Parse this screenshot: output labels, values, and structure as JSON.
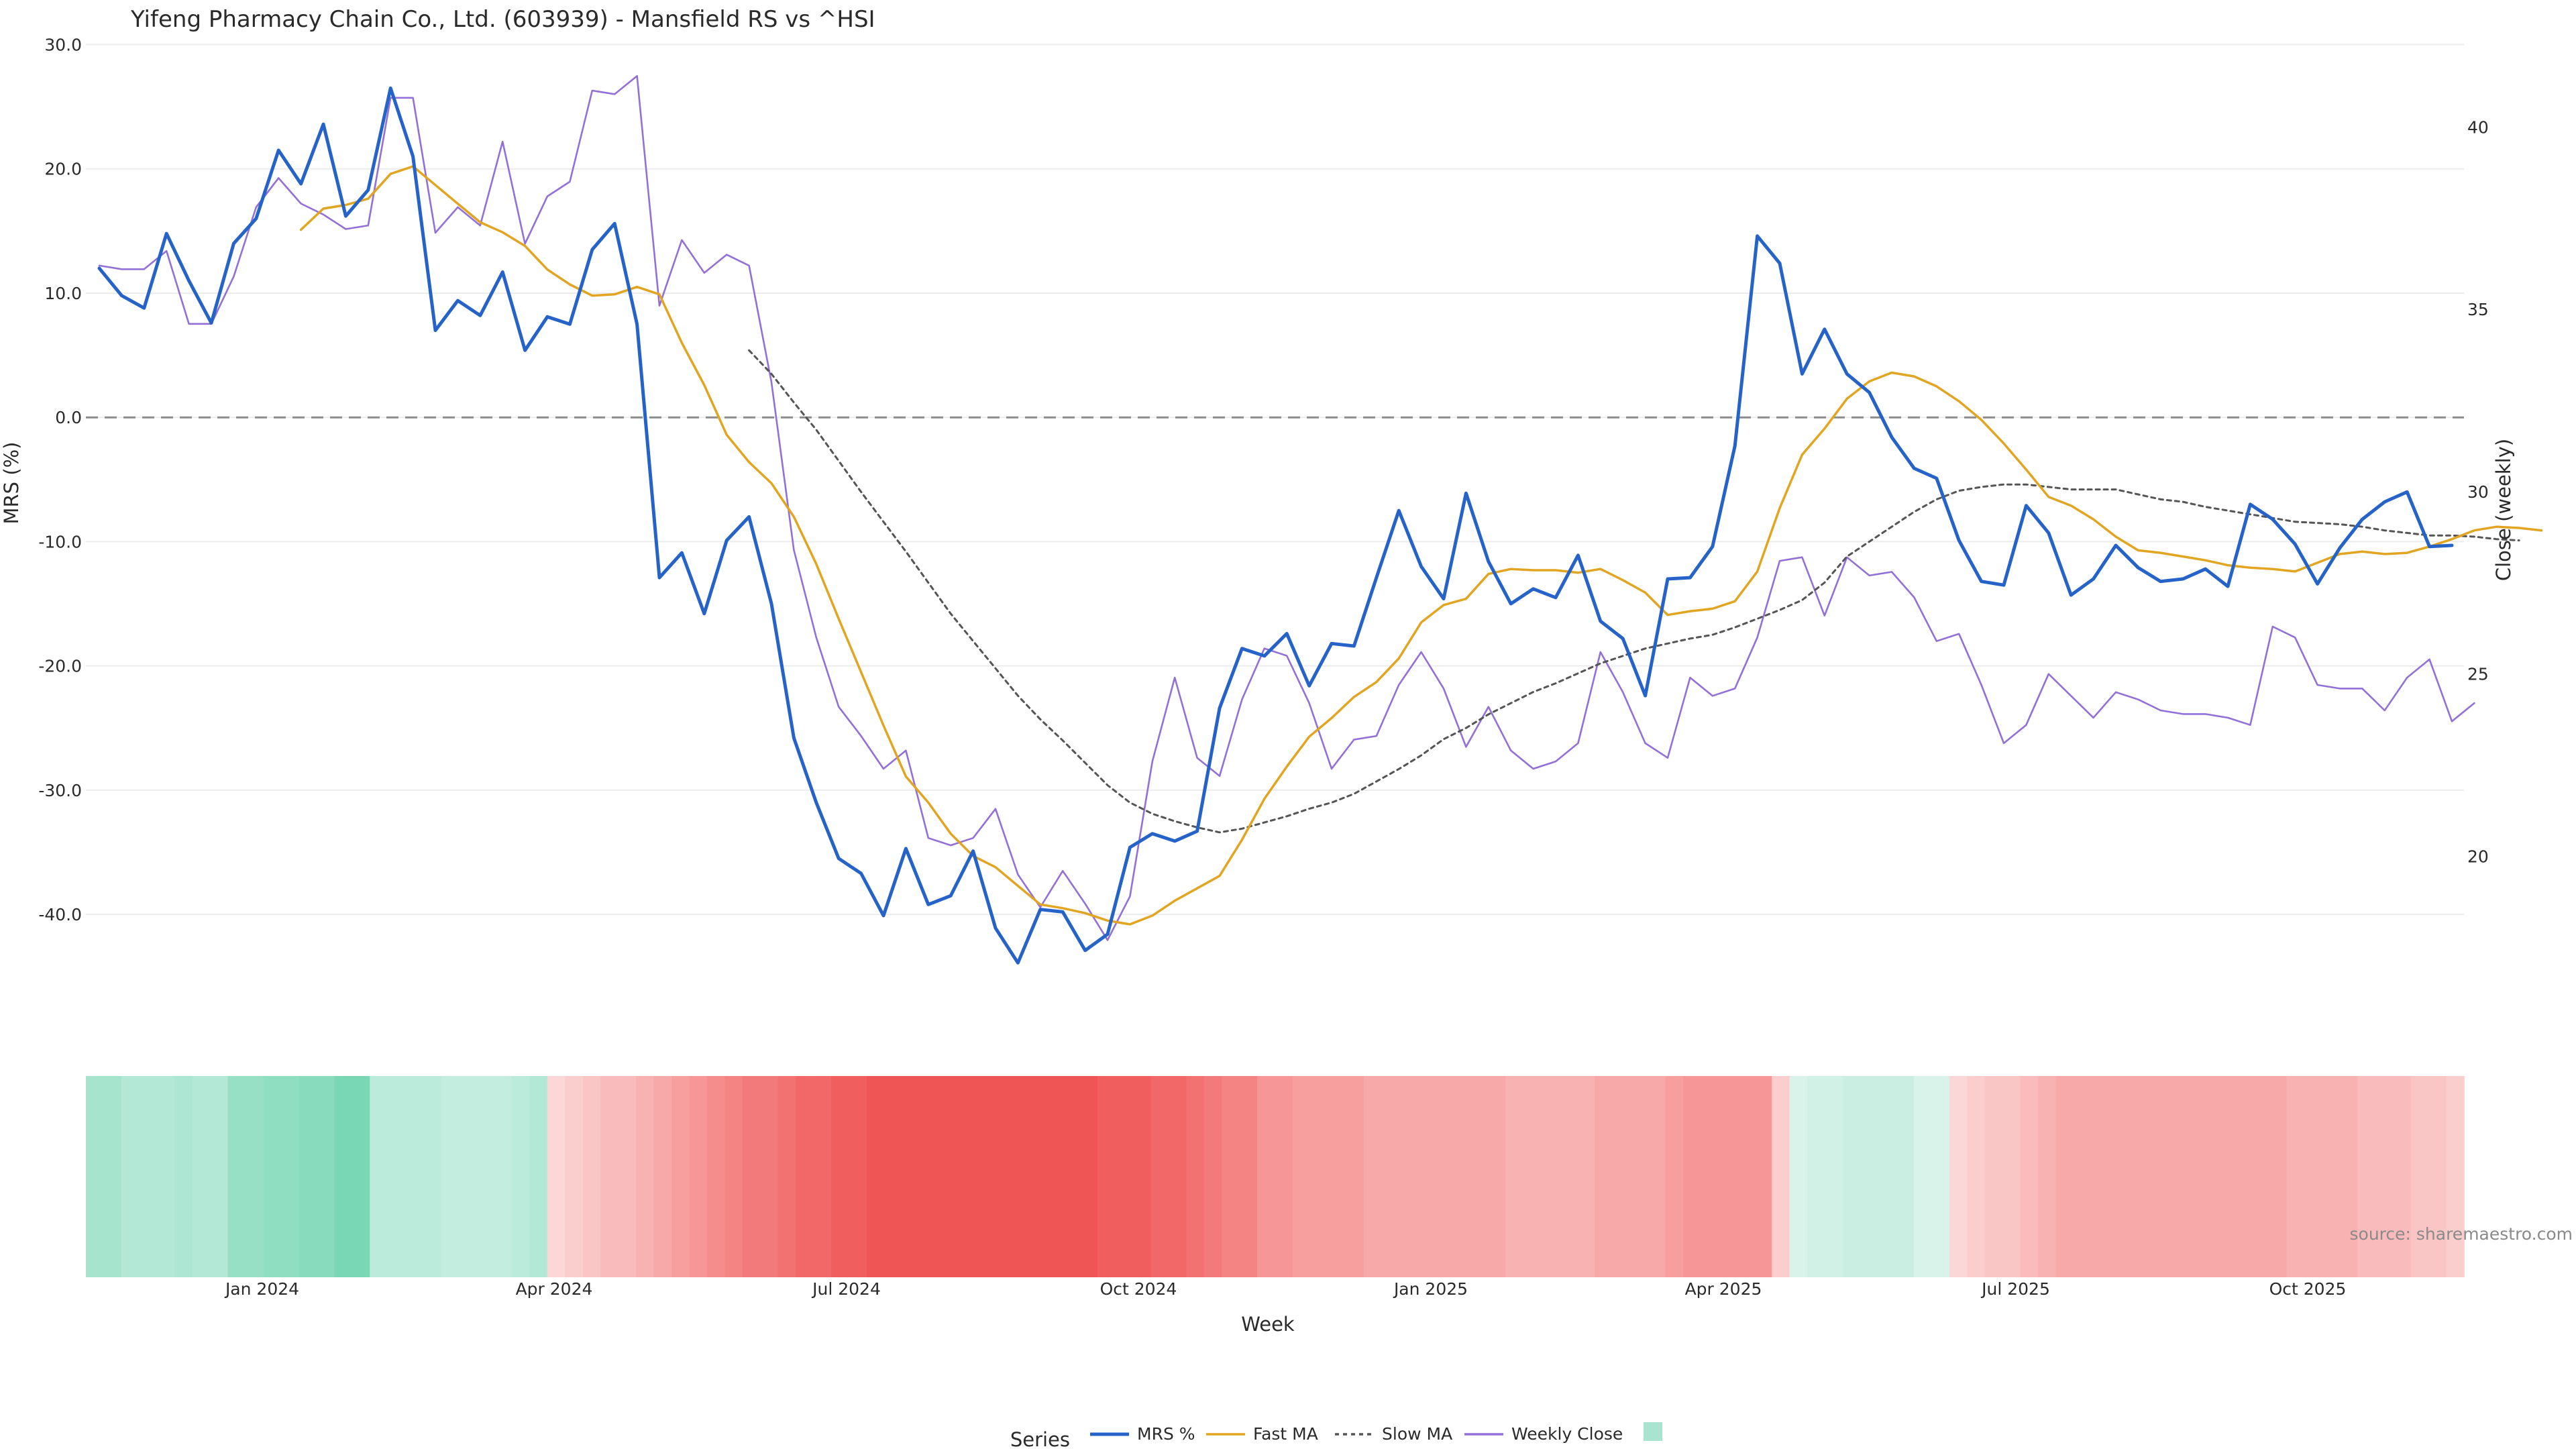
{
  "chart_data": {
    "type": "line",
    "title": "Yifeng Pharmacy Chain Co., Ltd. (603939) - Mansfield RS vs ^HSI",
    "xlabel": "Week",
    "ylabel": "MRS (%)",
    "y2label": "Close (weekly)",
    "x_ticks": [
      "Jan 2024",
      "Apr 2024",
      "Jul 2024",
      "Oct 2024",
      "Jan 2025",
      "Apr 2025",
      "Jul 2025",
      "Oct 2025"
    ],
    "y_ticks": [
      "30.0",
      "20.0",
      "10.0",
      "0.0",
      "-10.0",
      "-20.0",
      "-30.0",
      "-40.0"
    ],
    "y2_ticks": [
      "40",
      "35",
      "30",
      "25",
      "20"
    ],
    "ylim": [
      -47.5,
      31.0
    ],
    "y2lim": [
      15.85,
      42.6
    ],
    "reference_line": 0,
    "legend_title": "Series",
    "legend_position": "bottom-center",
    "source_text": "source: sharemaestro.com",
    "series": [
      {
        "name": "MRS %",
        "color": "#2563c9",
        "axis": "left",
        "values": [
          12,
          9.8,
          8.8,
          14.8,
          11,
          7.6,
          14,
          16,
          21.5,
          18.8,
          23.6,
          16.2,
          18.3,
          26.5,
          21,
          7,
          9.4,
          8.2,
          11.7,
          5.4,
          8.1,
          7.5,
          13.5,
          15.6,
          7.5,
          -12.9,
          -10.9,
          -15.8,
          -9.9,
          -8,
          -15,
          -25.8,
          -31,
          -35.5,
          -36.7,
          -40.1,
          -34.7,
          -39.2,
          -38.5,
          -34.9,
          -41.1,
          -43.9,
          -39.6,
          -39.8,
          -42.9,
          -41.6,
          -34.6,
          -33.5,
          -34.1,
          -33.3,
          -23.4,
          -18.6,
          -19.2,
          -17.4,
          -21.6,
          -18.2,
          -18.4,
          -12.9,
          -7.5,
          -12,
          -14.6,
          -6.1,
          -11.6,
          -15,
          -13.8,
          -14.5,
          -11.1,
          -16.4,
          -17.8,
          -22.4,
          -13,
          -12.9,
          -10.4,
          -2.3,
          14.6,
          12.4,
          3.5,
          7.1,
          3.5,
          2,
          -1.6,
          -4.1,
          -4.9,
          -9.9,
          -13.2,
          -13.5,
          -7.1,
          -9.3,
          -14.3,
          -13,
          -10.3,
          -12.1,
          -13.2,
          -13,
          -12.2,
          -13.6,
          -7,
          -8.2,
          -10.2,
          -13.4,
          -10.5,
          -8.2,
          -6.8,
          -6,
          -10.4,
          -10.3
        ]
      },
      {
        "name": "Fast MA",
        "color": "#e2a521",
        "axis": "left",
        "values": [
          null,
          null,
          null,
          null,
          null,
          null,
          null,
          null,
          null,
          15.1,
          16.8,
          17.1,
          17.6,
          19.6,
          20.2,
          18.7,
          17.2,
          15.7,
          14.9,
          13.8,
          11.9,
          10.7,
          9.8,
          9.9,
          10.5,
          9.9,
          6,
          2.6,
          -1.4,
          -3.6,
          -5.3,
          -8,
          -11.8,
          -16.2,
          -20.5,
          -24.8,
          -28.9,
          -31,
          -33.5,
          -35.3,
          -36.2,
          -37.7,
          -39.2,
          -39.5,
          -39.9,
          -40.5,
          -40.8,
          -40.1,
          -38.9,
          -37.9,
          -36.9,
          -34,
          -30.7,
          -28.1,
          -25.7,
          -24.2,
          -22.5,
          -21.3,
          -19.4,
          -16.5,
          -15.1,
          -14.6,
          -12.6,
          -12.2,
          -12.3,
          -12.3,
          -12.5,
          -12.2,
          -13.1,
          -14.1,
          -15.9,
          -15.6,
          -15.4,
          -14.8,
          -12.4,
          -7.3,
          -3,
          -0.9,
          1.5,
          2.9,
          3.6,
          3.3,
          2.5,
          1.3,
          -0.2,
          -2.1,
          -4.2,
          -6.4,
          -7.1,
          -8.2,
          -9.6,
          -10.7,
          -10.9,
          -11.2,
          -11.5,
          -11.9,
          -12.1,
          -12.2,
          -12.4,
          -11.7,
          -11,
          -10.8,
          -11,
          -10.9,
          -10.4,
          -9.8,
          -9.1,
          -8.8,
          -8.9,
          -9.1
        ]
      },
      {
        "name": "Slow MA",
        "color": "#555555",
        "axis": "left",
        "dash": true,
        "values": [
          null,
          null,
          null,
          null,
          null,
          null,
          null,
          null,
          null,
          null,
          null,
          null,
          null,
          null,
          null,
          null,
          null,
          null,
          null,
          null,
          null,
          null,
          null,
          null,
          null,
          null,
          null,
          null,
          null,
          5.4,
          3.5,
          1.2,
          -1,
          -3.5,
          -6,
          -8.4,
          -10.8,
          -13.3,
          -15.8,
          -18,
          -20.2,
          -22.4,
          -24.3,
          -26,
          -27.8,
          -29.6,
          -31,
          -31.9,
          -32.5,
          -33,
          -33.4,
          -33.1,
          -32.6,
          -32.1,
          -31.5,
          -31,
          -30.3,
          -29.3,
          -28.3,
          -27.2,
          -25.9,
          -25,
          -23.9,
          -23,
          -22.1,
          -21.4,
          -20.6,
          -19.8,
          -19.2,
          -18.6,
          -18.2,
          -17.8,
          -17.5,
          -16.9,
          -16.2,
          -15.5,
          -14.7,
          -13.3,
          -11.2,
          -10,
          -8.8,
          -7.6,
          -6.6,
          -5.9,
          -5.6,
          -5.4,
          -5.4,
          -5.6,
          -5.8,
          -5.8,
          -5.8,
          -6.2,
          -6.6,
          -6.8,
          -7.2,
          -7.5,
          -7.8,
          -8.1,
          -8.4,
          -8.5,
          -8.6,
          -8.8,
          -9.1,
          -9.3,
          -9.5,
          -9.5,
          -9.6,
          -9.8,
          -9.9
        ]
      },
      {
        "name": "Weekly Close",
        "color": "#9370d8",
        "axis": "right",
        "values": [
          36.2,
          36.1,
          36.1,
          36.6,
          34.6,
          34.6,
          35.9,
          37.8,
          38.6,
          37.9,
          37.6,
          37.2,
          37.3,
          40.8,
          40.8,
          37.1,
          37.8,
          37.3,
          39.6,
          36.8,
          38.1,
          38.5,
          41,
          40.9,
          41.4,
          35.1,
          36.9,
          36,
          36.5,
          36.2,
          33,
          28.4,
          26,
          24.1,
          23.3,
          22.4,
          22.9,
          20.5,
          20.3,
          20.5,
          21.3,
          19.5,
          18.6,
          19.6,
          18.7,
          17.7,
          18.9,
          22.6,
          24.9,
          22.7,
          22.2,
          24.3,
          25.7,
          25.5,
          24.2,
          22.4,
          23.2,
          23.3,
          24.7,
          25.6,
          24.6,
          23,
          24.1,
          22.9,
          22.4,
          22.6,
          23.1,
          25.6,
          24.5,
          23.1,
          22.7,
          24.9,
          24.4,
          24.6,
          26,
          28.1,
          28.2,
          26.6,
          28.2,
          27.7,
          27.8,
          27.1,
          25.9,
          26.1,
          24.7,
          23.1,
          23.6,
          25,
          24.4,
          23.8,
          24.5,
          24.3,
          24,
          23.9,
          23.9,
          23.8,
          23.6,
          26.3,
          26,
          24.7,
          24.6,
          24.6,
          24,
          24.9,
          25.4,
          23.7,
          24.2
        ]
      }
    ],
    "rs_heat_values": [
      9,
      9,
      7,
      7,
      7,
      8,
      7,
      7,
      11,
      11,
      12,
      12,
      13,
      13,
      15,
      15,
      6,
      6,
      6,
      6,
      5,
      5,
      5,
      5,
      6,
      7,
      -1,
      -2,
      -3,
      -4,
      -4,
      -5,
      -6,
      -7,
      -8,
      -9,
      -10,
      -11,
      -11,
      -12,
      -13,
      -13,
      -14,
      -14,
      -15,
      -15,
      -15,
      -15,
      -15,
      -15,
      -15,
      -15,
      -15,
      -15,
      -15,
      -15,
      -15,
      -14,
      -14,
      -14,
      -13,
      -13,
      -12,
      -11,
      -10,
      -10,
      -8,
      -8,
      -7,
      -7,
      -7,
      -7,
      -6,
      -6,
      -6,
      -6,
      -6,
      -6,
      -6,
      -6,
      -5,
      -5,
      -5,
      -5,
      -5,
      -6,
      -6,
      -6,
      -6,
      -7,
      -8,
      -8,
      -8,
      -8,
      -8,
      -2,
      2,
      3,
      3,
      4,
      4,
      4,
      4,
      2,
      2,
      -1,
      -2,
      -3,
      -3,
      -4,
      -5,
      -6,
      -6,
      -6,
      -6,
      -6,
      -6,
      -6,
      -6,
      -6,
      -6,
      -6,
      -6,
      -6,
      -5,
      -5,
      -5,
      -5,
      -4,
      -4,
      -4,
      -3,
      -3,
      -2
    ]
  }
}
